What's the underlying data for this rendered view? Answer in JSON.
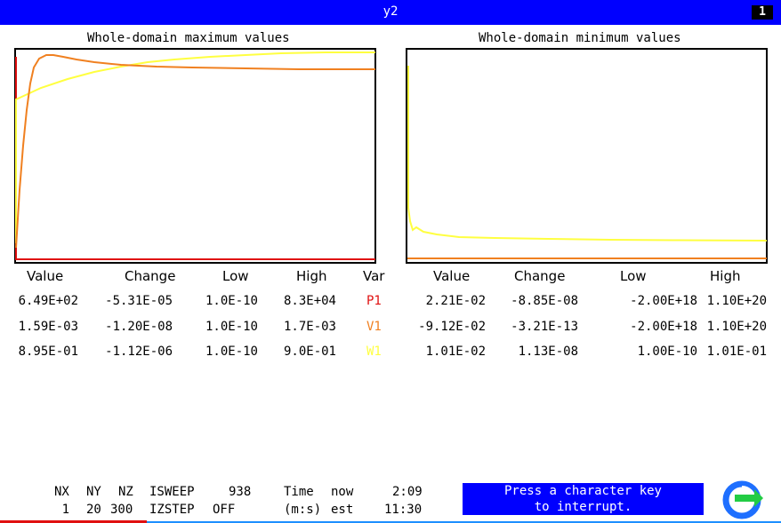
{
  "window": {
    "title": "y2",
    "number": "1"
  },
  "plots": {
    "max_title": "Whole-domain maximum values",
    "min_title": "Whole-domain minimum values"
  },
  "table": {
    "headers": [
      "Value",
      "Change",
      "Low",
      "High",
      "Var",
      "Value",
      "Change",
      "Low",
      "High"
    ],
    "rows": [
      {
        "value": "6.49E+02",
        "change": "-5.31E-05",
        "low": "1.0E-10",
        "high": "8.3E+04",
        "var": "P1",
        "min_value": "2.21E-02",
        "min_change": "-8.85E-08",
        "min_low": "-2.00E+18",
        "min_high": "1.10E+20"
      },
      {
        "value": "1.59E-03",
        "change": "-1.20E-08",
        "low": "1.0E-10",
        "high": "1.7E-03",
        "var": "V1",
        "min_value": "-9.12E-02",
        "min_change": "-3.21E-13",
        "min_low": "-2.00E+18",
        "min_high": "1.10E+20"
      },
      {
        "value": "8.95E-01",
        "change": "-1.12E-06",
        "low": "1.0E-10",
        "high": "9.0E-01",
        "var": "W1",
        "min_value": "1.01E-02",
        "min_change": "1.13E-08",
        "min_low": "1.00E-10",
        "min_high": "1.01E-01"
      }
    ]
  },
  "status": {
    "nx_label": "NX",
    "ny_label": "NY",
    "nz_label": "NZ",
    "isweep_label": "ISWEEP",
    "isweep_value": "938",
    "time_label": "Time",
    "now_label": "now",
    "now_value": "2:09",
    "nx_value": "1",
    "ny_value": "20",
    "nz_value": "300",
    "izstep_label": "IZSTEP",
    "izstep_value": "OFF",
    "ms_label": "(m:s)",
    "est_label": "est",
    "est_value": "11:30"
  },
  "interrupt": {
    "line1": "Press a character key",
    "line2": "to interrupt."
  },
  "colors": {
    "P1": "#e01010",
    "V1": "#f08020",
    "W1": "#ffff40",
    "titlebar": "#0000ff"
  }
}
